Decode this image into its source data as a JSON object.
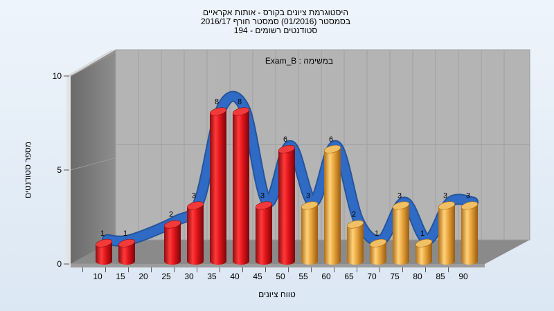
{
  "chart_data": {
    "type": "bar",
    "title_lines": [
      "היסטוגרמת ציונים בקורס - אותות אקראיים",
      "בסמסטר  (01/2016)  סמסטר חורף 2016/17",
      "סטודנטים רשומים - 194"
    ],
    "annotation": "במשימה : Exam_B",
    "xlabel": "טווח ציונים",
    "ylabel": "מספר סטודנטים",
    "categories": [
      "10",
      "15",
      "20",
      "25",
      "30",
      "35",
      "40",
      "45",
      "50",
      "55",
      "60",
      "65",
      "70",
      "75",
      "80",
      "85",
      "90"
    ],
    "values": [
      1,
      1,
      null,
      2,
      3,
      8,
      8,
      3,
      6,
      3,
      6,
      2,
      1,
      3,
      1,
      3,
      3
    ],
    "bar_colors": [
      "red",
      "red",
      "red",
      "red",
      "red",
      "red",
      "red",
      "red",
      "red",
      "gold",
      "gold",
      "gold",
      "gold",
      "gold",
      "gold",
      "gold",
      "gold"
    ],
    "ylim": [
      0,
      10
    ],
    "yticks": [
      0,
      5,
      10
    ],
    "trend_curve": true,
    "colors": {
      "red_bar": "#e0141b",
      "gold_bar": "#e8a43c",
      "curve": "#2f6bc4",
      "back_wall": "#b4b4b4",
      "side_wall": "#7d7d7d",
      "floor": "#8a8a8a"
    }
  }
}
